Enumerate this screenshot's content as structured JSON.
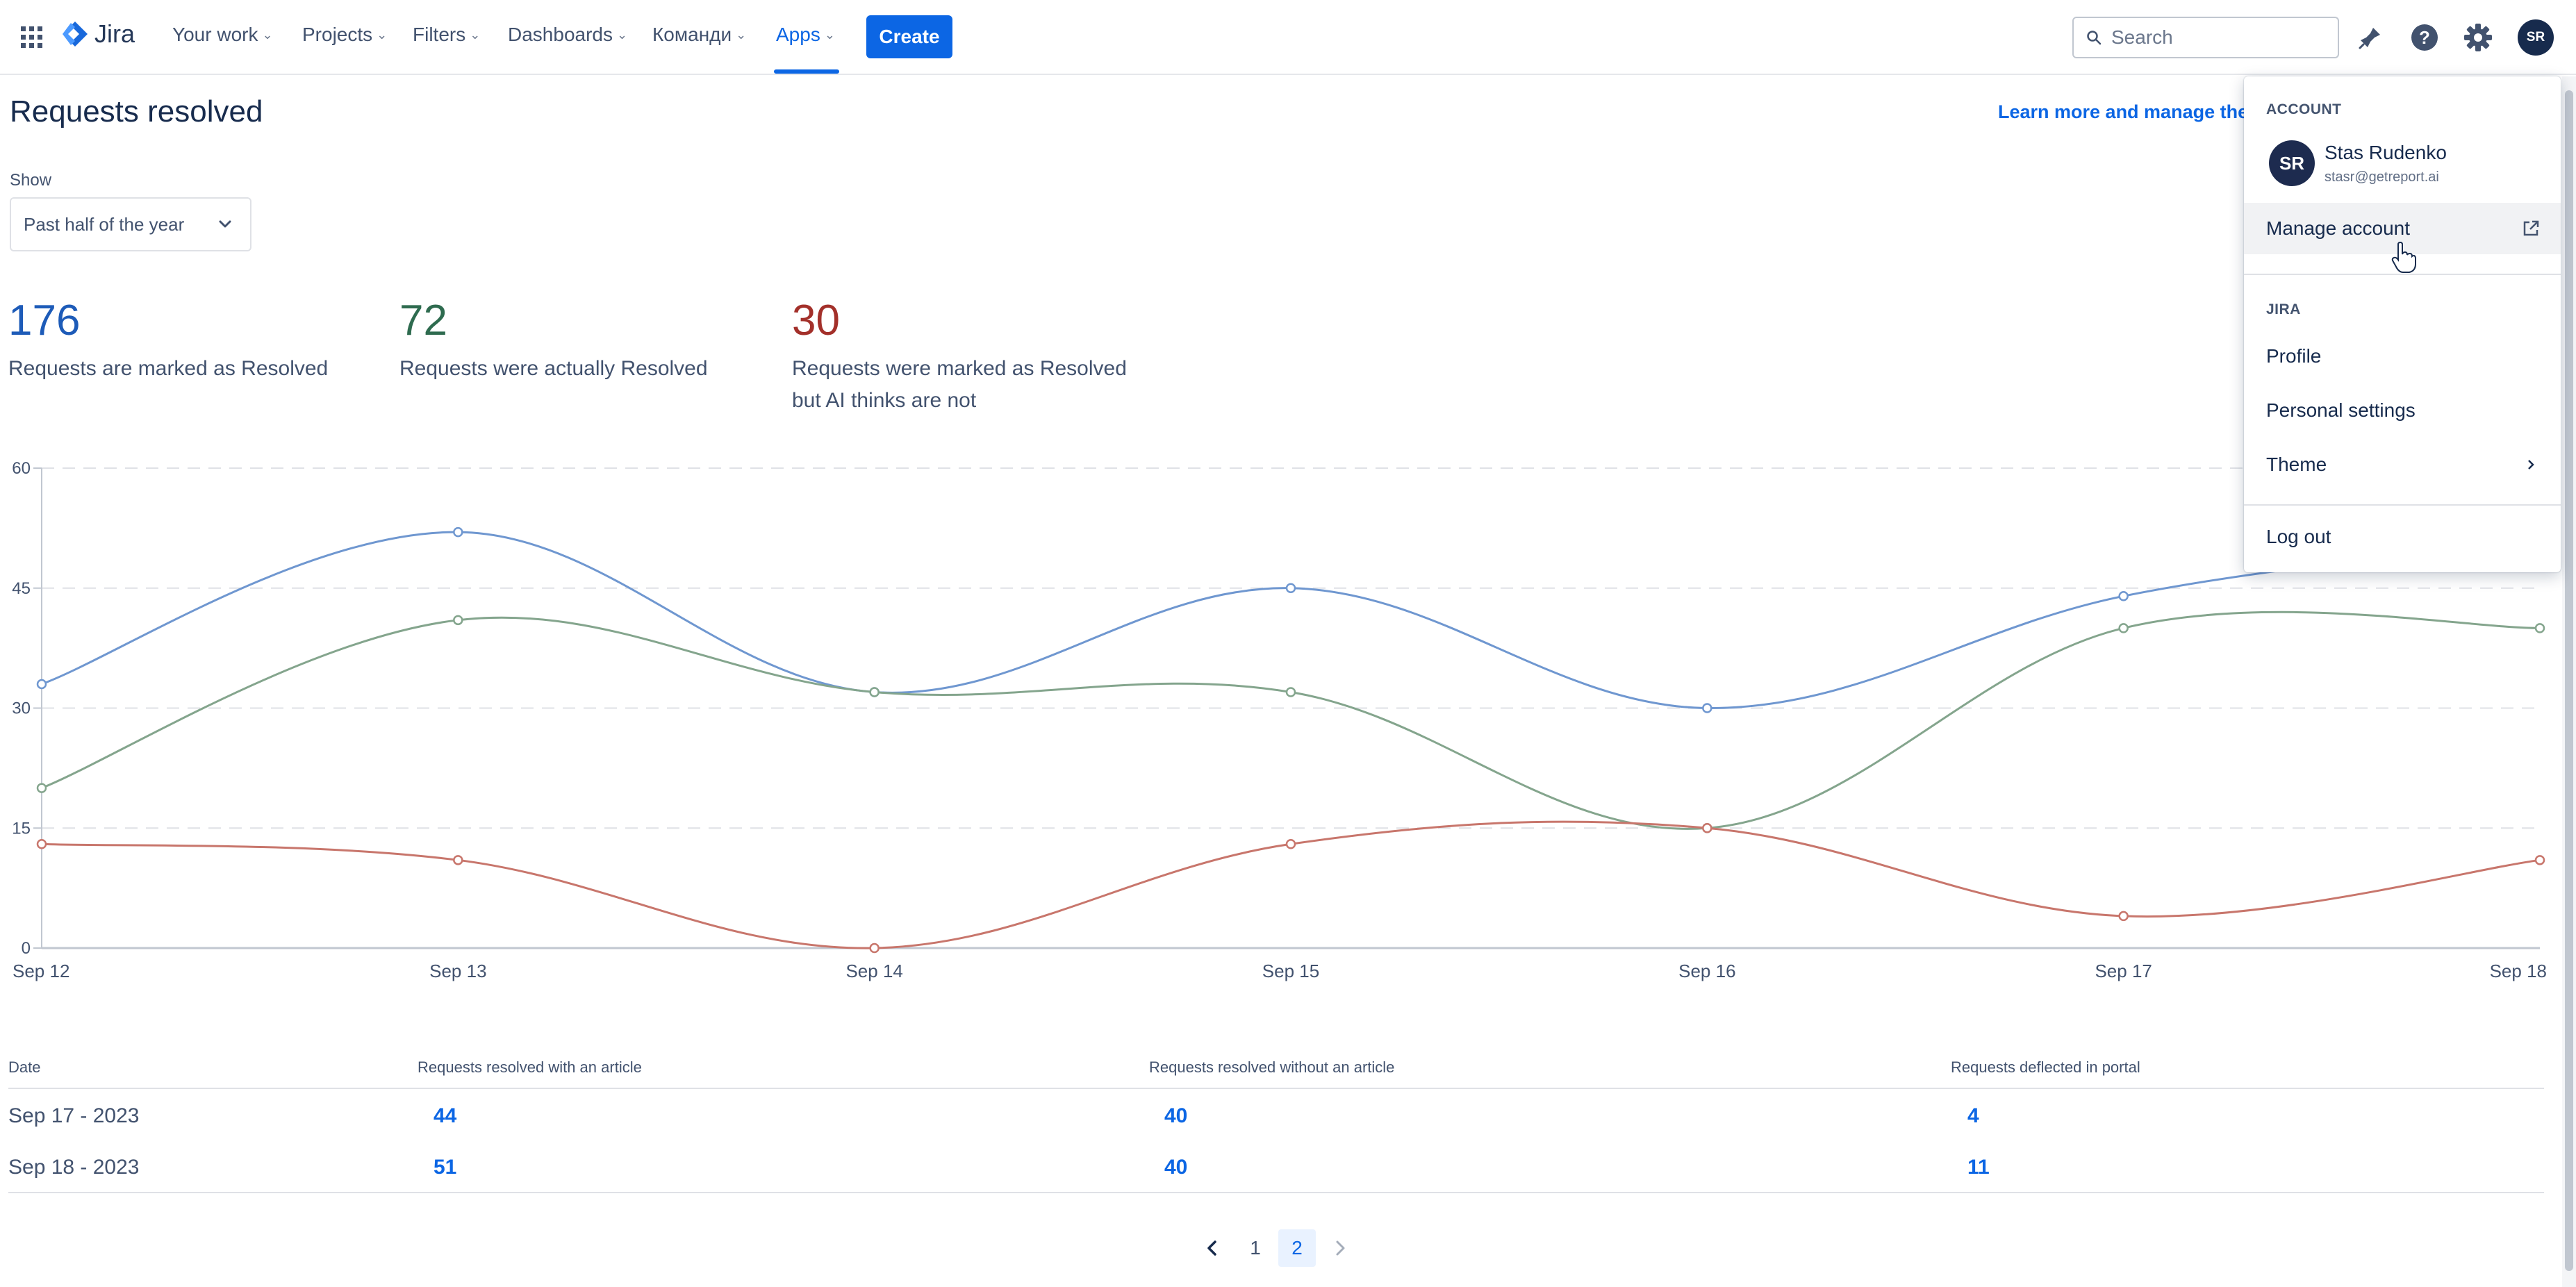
{
  "nav": {
    "logo_text": "Jira",
    "items": [
      {
        "label": "Your work"
      },
      {
        "label": "Projects"
      },
      {
        "label": "Filters"
      },
      {
        "label": "Dashboards"
      },
      {
        "label": "Команди"
      },
      {
        "label": "Apps"
      }
    ],
    "active_item": "Apps",
    "create_label": "Create",
    "search_placeholder": "Search",
    "avatar_initials": "SR"
  },
  "page": {
    "title": "Requests resolved",
    "learn_more": "Learn more and manage the",
    "show_label": "Show",
    "period_selected": "Past half of the year"
  },
  "stats": [
    {
      "value": "176",
      "label_lines": [
        "Requests are marked as Resolved"
      ],
      "color": "#1d5bb8"
    },
    {
      "value": "72",
      "label_lines": [
        "Requests were actually Resolved"
      ],
      "color": "#2e6b4f"
    },
    {
      "value": "30",
      "label_lines": [
        "Requests were marked as Resolved",
        "but AI thinks are not"
      ],
      "color": "#a3302a"
    }
  ],
  "chart_data": {
    "type": "line",
    "categories": [
      "Sep 12",
      "Sep 13",
      "Sep 14",
      "Sep 15",
      "Sep 16",
      "Sep 17",
      "Sep 18"
    ],
    "series": [
      {
        "color": "#6f97d0",
        "values": [
          33,
          52,
          32,
          45,
          30,
          44,
          51
        ]
      },
      {
        "color": "#84a58d",
        "values": [
          20,
          41,
          32,
          32,
          15,
          40,
          40
        ]
      },
      {
        "color": "#c8766c",
        "values": [
          13,
          11,
          0,
          13,
          15,
          4,
          11
        ]
      }
    ],
    "yticks": [
      0,
      15,
      30,
      45,
      60
    ],
    "ylim": [
      0,
      60
    ],
    "grid": "dashed horizontal"
  },
  "table": {
    "headers": [
      "Date",
      "Requests resolved with an article",
      "Requests resolved without an article",
      "Requests deflected in portal"
    ],
    "rows": [
      [
        "Sep 17 - 2023",
        "44",
        "40",
        "4"
      ],
      [
        "Sep 18 - 2023",
        "51",
        "40",
        "11"
      ]
    ]
  },
  "pagination": {
    "pages": [
      "1",
      "2"
    ],
    "current": "2"
  },
  "dropdown": {
    "account_heading": "ACCOUNT",
    "user_initials": "SR",
    "user_name": "Stas Rudenko",
    "user_email": "stasr@getreport.ai",
    "manage_account": "Manage account",
    "jira_heading": "JIRA",
    "profile": "Profile",
    "personal_settings": "Personal settings",
    "theme": "Theme",
    "log_out": "Log out"
  }
}
